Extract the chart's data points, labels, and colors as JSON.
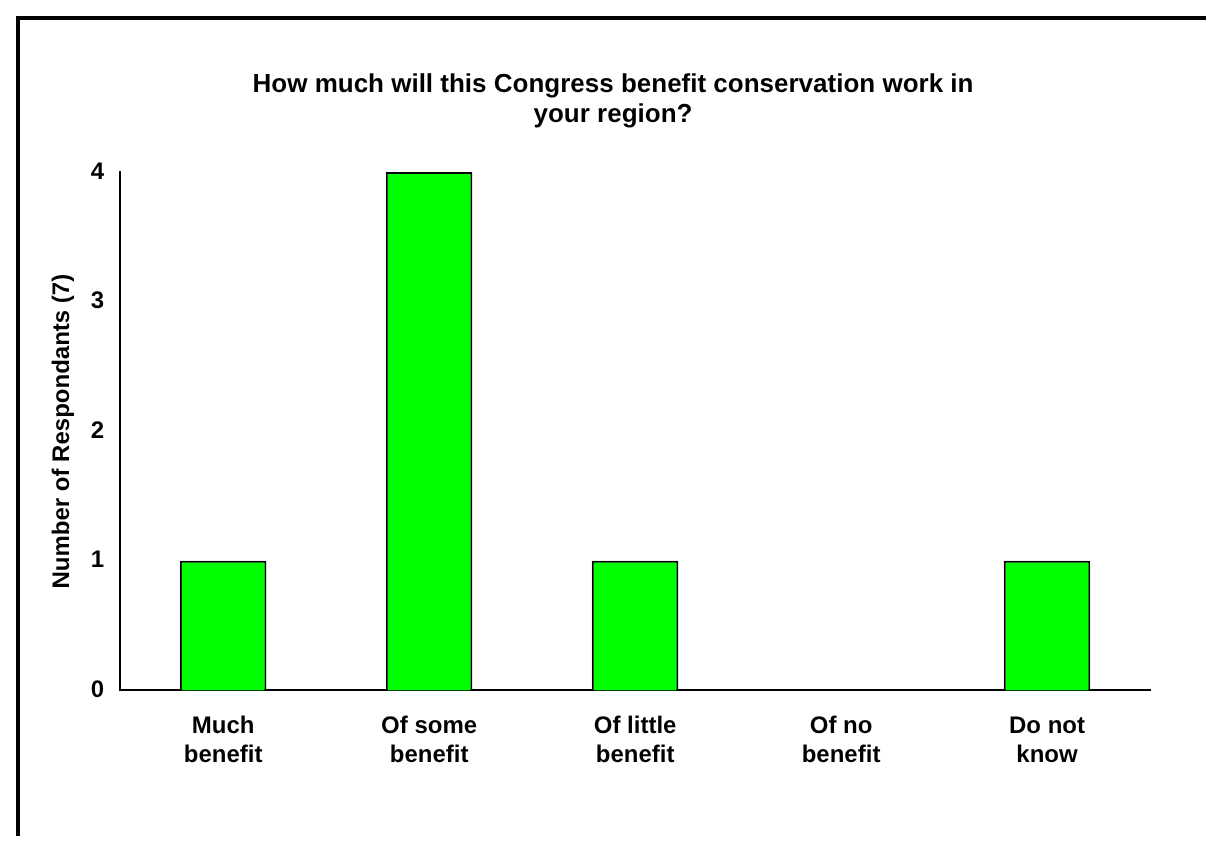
{
  "chart_data": {
    "type": "bar",
    "title": "How much will this Congress benefit conservation work in your region?",
    "ylabel": "Number of Respondants (7)",
    "categories": [
      "Much benefit",
      "Of some benefit",
      "Of little benefit",
      "Of no benefit",
      "Do not know"
    ],
    "values": [
      1,
      4,
      1,
      0,
      1
    ],
    "color": "#00ff00",
    "ylim": [
      0,
      4
    ],
    "yticks": [
      0,
      1,
      2,
      3,
      4
    ],
    "grid": false,
    "legend": false
  }
}
